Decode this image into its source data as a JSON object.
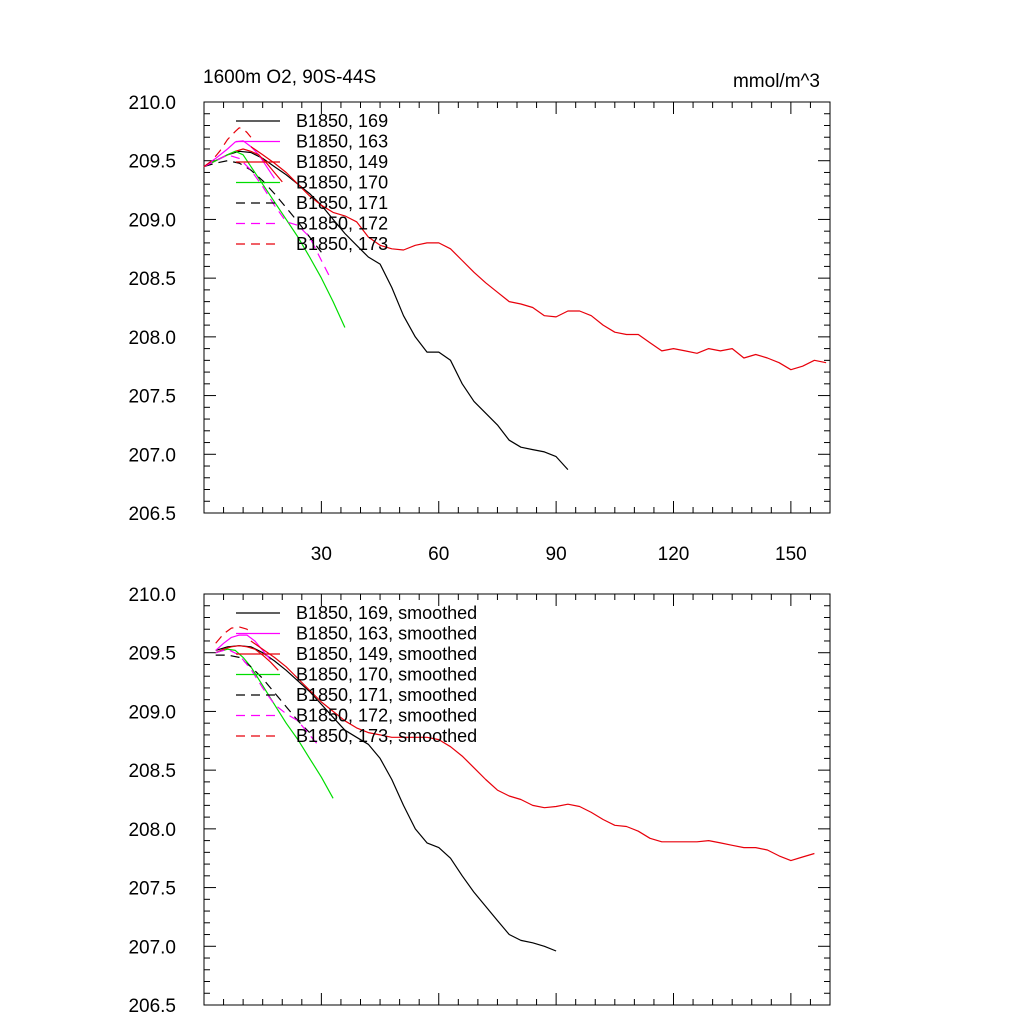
{
  "chart_data": [
    {
      "type": "line",
      "title": "1600m O2, 90S-44S",
      "units": "mmol/m^3",
      "xlim": [
        0,
        160
      ],
      "ylim": [
        206.5,
        210.0
      ],
      "xticks": [
        30,
        60,
        90,
        120,
        150
      ],
      "xtick_labels": [
        "30",
        "60",
        "90",
        "120",
        "150"
      ],
      "yticks": [
        206.5,
        207.0,
        207.5,
        208.0,
        208.5,
        209.0,
        209.5,
        210.0
      ],
      "ytick_labels": [
        "206.5",
        "207.0",
        "207.5",
        "208.0",
        "208.5",
        "209.0",
        "209.5",
        "210.0"
      ],
      "series": [
        {
          "name": "B1850, 169",
          "color": "#000000",
          "dash": "solid",
          "x": [
            0,
            3,
            6,
            9,
            12,
            15,
            18,
            21,
            24,
            27,
            30,
            33,
            36,
            39,
            42,
            45,
            48,
            51,
            54,
            57,
            60,
            63,
            66,
            69,
            72,
            75,
            78,
            81,
            84,
            87,
            90,
            93
          ],
          "y": [
            209.45,
            209.5,
            209.55,
            209.58,
            209.57,
            209.52,
            209.45,
            209.38,
            209.3,
            209.22,
            209.12,
            209.0,
            208.88,
            208.78,
            208.68,
            208.62,
            208.42,
            208.18,
            208.0,
            207.87,
            207.87,
            207.8,
            207.6,
            207.45,
            207.35,
            207.25,
            207.12,
            207.06,
            207.04,
            207.02,
            206.98,
            206.87
          ]
        },
        {
          "name": "B1850, 163",
          "color": "#ff00ff",
          "dash": "solid",
          "x": [
            0,
            3,
            6,
            8,
            10,
            12,
            14,
            16,
            18
          ],
          "y": [
            209.45,
            209.52,
            209.6,
            209.66,
            209.67,
            209.62,
            209.55,
            209.45,
            209.35
          ]
        },
        {
          "name": "B1850, 149",
          "color": "#e8000b",
          "dash": "solid",
          "x": [
            0,
            3,
            6,
            8,
            10,
            12,
            14,
            16,
            18,
            20
          ],
          "y": [
            209.45,
            209.5,
            209.55,
            209.58,
            209.6,
            209.58,
            209.55,
            209.48,
            209.4,
            209.32
          ]
        },
        {
          "name": "B1850, 170",
          "color": "#00dd00",
          "dash": "solid",
          "x": [
            0,
            3,
            6,
            8,
            10,
            12,
            15,
            18,
            21,
            24,
            27,
            30,
            33,
            36
          ],
          "y": [
            209.45,
            209.5,
            209.55,
            209.58,
            209.55,
            209.45,
            209.3,
            209.15,
            209.0,
            208.85,
            208.68,
            208.5,
            208.3,
            208.08
          ]
        },
        {
          "name": "B1850, 171",
          "color": "#000000",
          "dash": "dashed",
          "x": [
            0,
            3,
            6,
            9,
            12,
            15,
            18,
            21,
            24,
            27,
            30
          ],
          "y": [
            209.45,
            209.48,
            209.5,
            209.48,
            209.42,
            209.33,
            209.22,
            209.1,
            208.98,
            208.85,
            208.72
          ]
        },
        {
          "name": "B1850, 172",
          "color": "#ff00ff",
          "dash": "dashed",
          "x": [
            0,
            3,
            6,
            9,
            12,
            15,
            18,
            21,
            24,
            27,
            30,
            32
          ],
          "y": [
            209.45,
            209.5,
            209.55,
            209.52,
            209.42,
            209.28,
            209.12,
            208.98,
            208.95,
            208.85,
            208.65,
            208.52
          ]
        },
        {
          "name": "B1850, 173",
          "color": "#e8000b",
          "dash": "dashed",
          "x": [
            0,
            2,
            4,
            6,
            8,
            9,
            10,
            11,
            12
          ],
          "y": [
            209.45,
            209.5,
            209.58,
            209.68,
            209.75,
            209.78,
            209.77,
            209.74,
            209.7
          ]
        },
        {
          "name": "",
          "color": "#e8000b",
          "dash": "solid",
          "x": [
            12,
            15,
            18,
            21,
            24,
            27,
            30,
            33,
            36,
            39,
            42,
            45,
            48,
            51,
            54,
            57,
            60,
            63,
            66,
            69,
            72,
            75,
            78,
            81,
            84,
            87,
            90,
            93,
            96,
            99,
            102,
            105,
            108,
            111,
            114,
            117,
            120,
            123,
            126,
            129,
            132,
            135,
            138,
            141,
            144,
            147,
            150,
            153,
            156,
            159
          ],
          "y": [
            209.62,
            209.55,
            209.48,
            209.4,
            209.3,
            209.2,
            209.12,
            209.06,
            209.03,
            208.98,
            208.85,
            208.78,
            208.75,
            208.74,
            208.78,
            208.8,
            208.8,
            208.75,
            208.65,
            208.55,
            208.46,
            208.38,
            208.3,
            208.28,
            208.25,
            208.18,
            208.17,
            208.22,
            208.22,
            208.18,
            208.1,
            208.04,
            208.02,
            208.02,
            207.95,
            207.88,
            207.9,
            207.88,
            207.86,
            207.9,
            207.88,
            207.9,
            207.82,
            207.85,
            207.82,
            207.78,
            207.72,
            207.75,
            207.8,
            207.78
          ]
        }
      ]
    },
    {
      "type": "line",
      "title": "",
      "xlim": [
        0,
        160
      ],
      "ylim": [
        206.5,
        210.0
      ],
      "yticks": [
        206.5,
        207.0,
        207.5,
        208.0,
        208.5,
        209.0,
        209.5,
        210.0
      ],
      "ytick_labels": [
        "206.5",
        "207.0",
        "207.5",
        "208.0",
        "208.5",
        "209.0",
        "209.5",
        "210.0"
      ],
      "series": [
        {
          "name": "B1850, 169, smoothed",
          "color": "#000000",
          "dash": "solid",
          "x": [
            3,
            6,
            9,
            12,
            15,
            18,
            21,
            24,
            27,
            30,
            33,
            36,
            39,
            42,
            45,
            48,
            51,
            54,
            57,
            60,
            63,
            66,
            69,
            72,
            75,
            78,
            81,
            84,
            87,
            90
          ],
          "y": [
            209.52,
            209.55,
            209.56,
            209.55,
            209.5,
            209.43,
            209.35,
            209.26,
            209.17,
            209.06,
            208.95,
            208.84,
            208.78,
            208.72,
            208.6,
            208.42,
            208.2,
            208.0,
            207.88,
            207.84,
            207.75,
            207.6,
            207.46,
            207.34,
            207.22,
            207.1,
            207.05,
            207.03,
            207.0,
            206.96
          ]
        },
        {
          "name": "B1850, 163, smoothed",
          "color": "#ff00ff",
          "dash": "solid",
          "x": [
            3,
            5,
            7,
            9,
            11,
            13,
            15,
            17
          ],
          "y": [
            209.52,
            209.58,
            209.63,
            209.65,
            209.65,
            209.6,
            209.52,
            209.44
          ]
        },
        {
          "name": "B1850, 149, smoothed",
          "color": "#e8000b",
          "dash": "solid",
          "x": [
            3,
            5,
            7,
            9,
            11,
            13,
            15,
            17,
            19
          ],
          "y": [
            209.5,
            209.53,
            209.55,
            209.56,
            209.55,
            209.53,
            209.48,
            209.42,
            209.35
          ]
        },
        {
          "name": "B1850, 170, smoothed",
          "color": "#00dd00",
          "dash": "solid",
          "x": [
            3,
            6,
            8,
            10,
            12,
            15,
            18,
            21,
            24,
            27,
            30,
            33
          ],
          "y": [
            209.5,
            209.53,
            209.52,
            209.46,
            209.38,
            209.22,
            209.06,
            208.9,
            208.76,
            208.6,
            208.44,
            208.26
          ]
        },
        {
          "name": "B1850, 171, smoothed",
          "color": "#000000",
          "dash": "dashed",
          "x": [
            3,
            6,
            9,
            12,
            15,
            18,
            21,
            24,
            27
          ],
          "y": [
            209.48,
            209.48,
            209.46,
            209.38,
            209.28,
            209.16,
            209.04,
            208.92,
            208.82
          ]
        },
        {
          "name": "B1850, 172, smoothed",
          "color": "#ff00ff",
          "dash": "dashed",
          "x": [
            3,
            6,
            9,
            12,
            15,
            18,
            21,
            24,
            27,
            29
          ],
          "y": [
            209.5,
            209.53,
            209.48,
            209.36,
            209.2,
            209.06,
            208.98,
            208.92,
            208.8,
            208.72
          ]
        },
        {
          "name": "B1850, 173, smoothed",
          "color": "#e8000b",
          "dash": "dashed",
          "x": [
            3,
            5,
            7,
            9,
            11,
            12
          ],
          "y": [
            209.58,
            209.66,
            209.71,
            209.72,
            209.7,
            209.66
          ]
        },
        {
          "name": "",
          "color": "#e8000b",
          "dash": "solid",
          "x": [
            12,
            15,
            18,
            21,
            24,
            27,
            30,
            33,
            36,
            39,
            42,
            45,
            48,
            51,
            54,
            57,
            60,
            63,
            66,
            69,
            72,
            75,
            78,
            81,
            84,
            87,
            90,
            93,
            96,
            99,
            102,
            105,
            108,
            111,
            114,
            117,
            120,
            123,
            126,
            129,
            132,
            135,
            138,
            141,
            144,
            147,
            150,
            153,
            156
          ],
          "y": [
            209.6,
            209.53,
            209.46,
            209.38,
            209.28,
            209.18,
            209.08,
            209.0,
            208.92,
            208.86,
            208.82,
            208.8,
            208.78,
            208.78,
            208.78,
            208.78,
            208.76,
            208.7,
            208.62,
            208.52,
            208.42,
            208.33,
            208.28,
            208.25,
            208.2,
            208.18,
            208.19,
            208.21,
            208.19,
            208.14,
            208.08,
            208.03,
            208.02,
            207.98,
            207.92,
            207.89,
            207.89,
            207.89,
            207.89,
            207.9,
            207.88,
            207.86,
            207.84,
            207.84,
            207.82,
            207.77,
            207.73,
            207.76,
            207.79
          ]
        }
      ]
    }
  ]
}
